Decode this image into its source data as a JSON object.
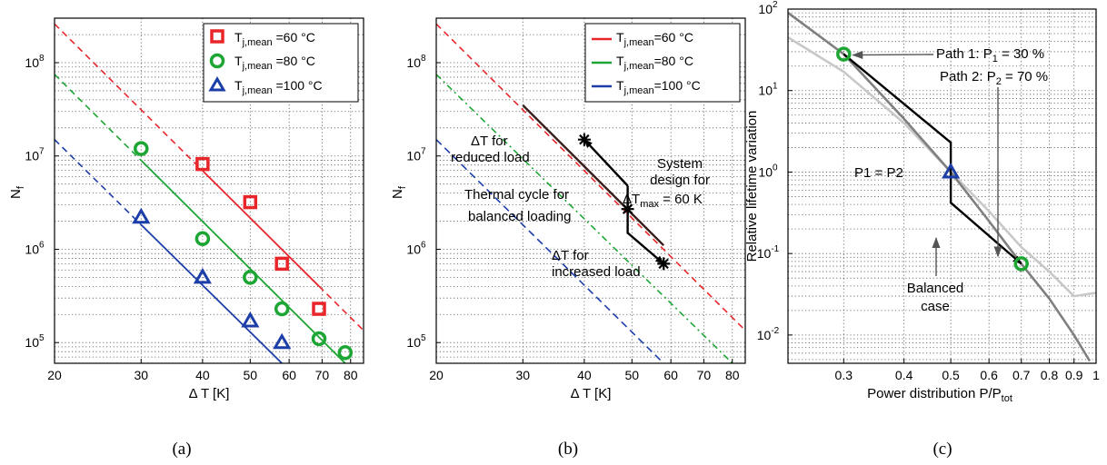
{
  "chart_data": [
    {
      "type": "scatter",
      "caption": "(a)",
      "xlabel": "Δ T [K]",
      "ylabel": "N_f",
      "x_scale": "log",
      "y_scale": "log",
      "xlim": [
        20,
        85
      ],
      "ylim": [
        60000,
        300000000
      ],
      "x_ticks": [
        "20",
        "30",
        "40",
        "50",
        "60",
        "70",
        "80"
      ],
      "x_tick_values": [
        20,
        30,
        40,
        50,
        60,
        70,
        80
      ],
      "y_tick_values": [
        100000,
        1000000,
        10000000,
        100000000
      ],
      "grid": true,
      "legend_position": "top-right",
      "series": [
        {
          "name": "T_j,mean =60 °C",
          "color": "#e8262a",
          "marker": "square",
          "points": [
            [
              40,
              8200000
            ],
            [
              50,
              3200000
            ],
            [
              58,
              700000
            ],
            [
              69,
              230000
            ]
          ],
          "fit_line": [
            [
              20,
              260000000
            ],
            [
              85,
              135000
            ]
          ]
        },
        {
          "name": "T_j,mean =80 °C",
          "color": "#1ea634",
          "marker": "circle",
          "points": [
            [
              30,
              12000000
            ],
            [
              40,
              1300000
            ],
            [
              50,
              500000
            ],
            [
              58,
              230000
            ],
            [
              69,
              110000
            ],
            [
              78,
              78000
            ]
          ],
          "fit_line": [
            [
              20,
              75000000
            ],
            [
              78,
              60000
            ]
          ]
        },
        {
          "name": "T_j,mean =100 °C",
          "color": "#1c3ea8",
          "marker": "triangle",
          "points": [
            [
              30,
              2200000
            ],
            [
              40,
              500000
            ],
            [
              50,
              170000
            ],
            [
              58,
              100000
            ]
          ],
          "fit_line": [
            [
              20,
              15000000
            ],
            [
              58,
              60000
            ]
          ]
        }
      ]
    },
    {
      "type": "line",
      "caption": "(b)",
      "xlabel": "Δ T [K]",
      "ylabel": "N_f",
      "x_scale": "log",
      "y_scale": "log",
      "xlim": [
        20,
        85
      ],
      "ylim": [
        60000,
        300000000
      ],
      "x_ticks": [
        "20",
        "30",
        "40",
        "50",
        "60",
        "70",
        "80"
      ],
      "x_tick_values": [
        20,
        30,
        40,
        50,
        60,
        70,
        80
      ],
      "y_tick_values": [
        100000,
        1000000,
        10000000,
        100000000
      ],
      "grid": true,
      "legend_position": "top-right",
      "series": [
        {
          "name": "T_j,mean =60 °C",
          "color": "#e8262a",
          "line": [
            [
              20,
              260000000
            ],
            [
              85,
              135000
            ]
          ]
        },
        {
          "name": "T_j,mean =80 °C",
          "color": "#1ea634",
          "line": [
            [
              20,
              75000000
            ],
            [
              80,
              60000
            ]
          ]
        },
        {
          "name": "T_j,mean =100 °C",
          "color": "#1c3ea8",
          "line": [
            [
              20,
              15000000
            ],
            [
              58,
              60000
            ]
          ]
        }
      ],
      "design_line": [
        [
          30,
          35000000
        ],
        [
          58,
          1100000
        ]
      ],
      "thermal_cycle_path": [
        [
          40,
          15000000
        ],
        [
          49,
          4800000
        ],
        [
          49,
          2700000
        ],
        [
          49,
          1500000
        ],
        [
          58,
          700000
        ]
      ],
      "star_points": [
        [
          40,
          15000000
        ],
        [
          49,
          2700000
        ],
        [
          58,
          700000
        ]
      ],
      "annotations": {
        "reduced_1": "ΔT for",
        "reduced_2": "reduced load",
        "cycle_1": "Thermal cycle for",
        "cycle_2": "balanced loading",
        "increased_1": "ΔT for",
        "increased_2": "increased load",
        "design_1": "System",
        "design_2": "design for",
        "design_3_pre": "ΔT",
        "design_3_sub": "max",
        "design_3_post": " = 60 K"
      }
    },
    {
      "type": "line",
      "caption": "(c)",
      "xlabel_main": "Power distribution P/P",
      "xlabel_sub": "tot",
      "ylabel": "Relative lifetime variation",
      "x_scale": "log",
      "y_scale": "log",
      "xlim": [
        0.23,
        1.0
      ],
      "ylim": [
        0.0045,
        100
      ],
      "x_ticks": [
        "0.3",
        "0.4",
        "0.5",
        "0.6",
        "0.7",
        "0.8",
        "0.9",
        "1"
      ],
      "x_tick_values": [
        0.3,
        0.4,
        0.5,
        0.6,
        0.7,
        0.8,
        0.9,
        1.0
      ],
      "y_tick_values": [
        0.01,
        0.1,
        1,
        10,
        100
      ],
      "grid": true,
      "series": [
        {
          "name": "dark curve",
          "color": "#7f7f7f",
          "line": [
            [
              0.23,
              90
            ],
            [
              0.3,
              28
            ],
            [
              0.4,
              4.5
            ],
            [
              0.5,
              1.0
            ],
            [
              0.6,
              0.25
            ],
            [
              0.7,
              0.075
            ],
            [
              0.8,
              0.028
            ],
            [
              0.9,
              0.01
            ],
            [
              0.97,
              0.0048
            ]
          ]
        },
        {
          "name": "light curve",
          "color": "#c8c8c8",
          "line": [
            [
              0.23,
              45
            ],
            [
              0.3,
              17
            ],
            [
              0.4,
              4.0
            ],
            [
              0.5,
              1.0
            ],
            [
              0.6,
              0.33
            ],
            [
              0.7,
              0.12
            ],
            [
              0.8,
              0.06
            ],
            [
              0.9,
              0.03
            ],
            [
              1.0,
              0.033
            ]
          ]
        }
      ],
      "path": [
        [
          0.3,
          28
        ],
        [
          0.5,
          2.3
        ],
        [
          0.5,
          0.42
        ],
        [
          0.7,
          0.075
        ]
      ],
      "markers": [
        {
          "shape": "circle",
          "color": "#1ea634",
          "at": [
            0.3,
            28
          ]
        },
        {
          "shape": "triangle",
          "color": "#1c3ea8",
          "at": [
            0.5,
            1.0
          ]
        },
        {
          "shape": "circle",
          "color": "#1ea634",
          "at": [
            0.7,
            0.075
          ]
        }
      ],
      "annotations": {
        "path1_pre": "Path 1: P",
        "path1_sub": "1",
        "path1_post": " = 30 %",
        "path2_pre": "Path 2: P",
        "path2_sub": "2",
        "path2_post": " = 70 %",
        "equal": "P1 = P2",
        "balanced_1": "Balanced",
        "balanced_2": "case"
      }
    }
  ],
  "legend_labels": {
    "main": "T",
    "sub": "j,mean",
    "a": [
      " =60 °C",
      " =80 °C",
      " =100 °C"
    ],
    "b": [
      "=60 °C",
      "=80 °C",
      "=100 °C"
    ]
  },
  "y_tick_base": "10",
  "y_tick_exps": {
    "ab": [
      "5",
      "6",
      "7",
      "8"
    ],
    "c": [
      "-2",
      "-1",
      "0",
      "1",
      "2"
    ]
  },
  "nf_label_main": "N",
  "nf_label_sub": "f",
  "captions": [
    "(a)",
    "(b)",
    "(c)"
  ]
}
